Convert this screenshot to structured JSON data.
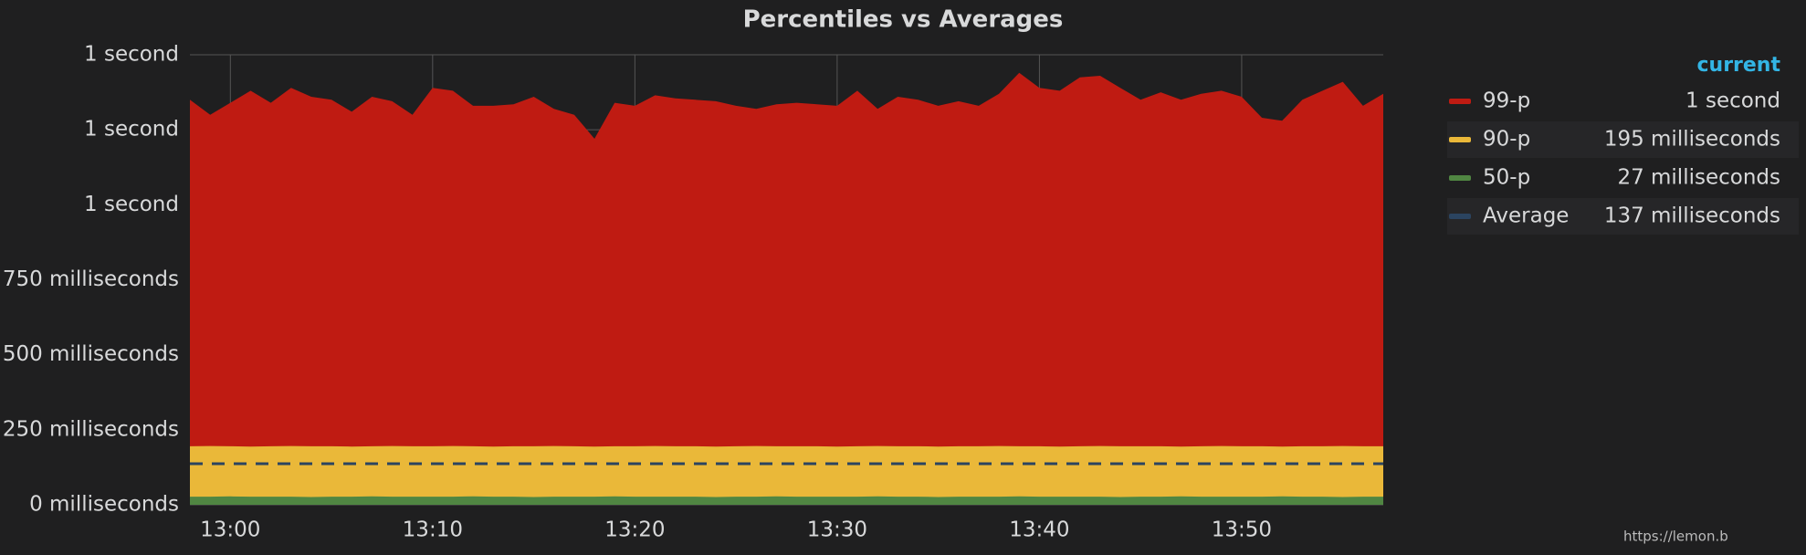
{
  "chart_data": {
    "type": "area",
    "title": "Percentiles vs Averages",
    "x": [
      "12:58",
      "12:59",
      "13:00",
      "13:01",
      "13:02",
      "13:03",
      "13:04",
      "13:05",
      "13:06",
      "13:07",
      "13:08",
      "13:09",
      "13:10",
      "13:11",
      "13:12",
      "13:13",
      "13:14",
      "13:15",
      "13:16",
      "13:17",
      "13:18",
      "13:19",
      "13:20",
      "13:21",
      "13:22",
      "13:23",
      "13:24",
      "13:25",
      "13:26",
      "13:27",
      "13:28",
      "13:29",
      "13:30",
      "13:31",
      "13:32",
      "13:33",
      "13:34",
      "13:35",
      "13:36",
      "13:37",
      "13:38",
      "13:39",
      "13:40",
      "13:41",
      "13:42",
      "13:43",
      "13:44",
      "13:45",
      "13:46",
      "13:47",
      "13:48",
      "13:49",
      "13:50",
      "13:51",
      "13:52",
      "13:53",
      "13:54",
      "13:55",
      "13:56",
      "13:57"
    ],
    "xlim": [
      "12:58",
      "13:57"
    ],
    "xticks": [
      "13:00",
      "13:10",
      "13:20",
      "13:30",
      "13:40",
      "13:50"
    ],
    "ylim": [
      0,
      1500
    ],
    "yticks": [
      {
        "value": 0,
        "label": "0 milliseconds"
      },
      {
        "value": 250,
        "label": "250 milliseconds"
      },
      {
        "value": 500,
        "label": "500 milliseconds"
      },
      {
        "value": 750,
        "label": "750 milliseconds"
      },
      {
        "value": 1000,
        "label": "1 second"
      },
      {
        "value": 1250,
        "label": "1 second"
      },
      {
        "value": 1500,
        "label": "1 second"
      }
    ],
    "grid": true,
    "legend_header": "current",
    "series": [
      {
        "name": "99-p",
        "color": "#bf1b12",
        "fill": true,
        "current": "1 second",
        "values": [
          1350,
          1300,
          1340,
          1380,
          1340,
          1390,
          1360,
          1350,
          1310,
          1360,
          1345,
          1300,
          1390,
          1380,
          1330,
          1330,
          1335,
          1360,
          1320,
          1300,
          1220,
          1340,
          1330,
          1365,
          1355,
          1350,
          1345,
          1330,
          1320,
          1335,
          1340,
          1335,
          1330,
          1380,
          1320,
          1360,
          1350,
          1330,
          1345,
          1330,
          1370,
          1440,
          1390,
          1380,
          1425,
          1430,
          1390,
          1350,
          1375,
          1350,
          1370,
          1380,
          1360,
          1290,
          1280,
          1350,
          1380,
          1410,
          1330,
          1370
        ]
      },
      {
        "name": "90-p",
        "color": "#eab839",
        "fill": true,
        "current": "195 milliseconds",
        "values": [
          195,
          196,
          195,
          194,
          195,
          196,
          195,
          195,
          194,
          195,
          196,
          195,
          195,
          196,
          195,
          194,
          195,
          195,
          196,
          195,
          194,
          195,
          195,
          196,
          195,
          195,
          194,
          195,
          196,
          195,
          195,
          195,
          194,
          195,
          196,
          195,
          195,
          194,
          195,
          195,
          196,
          195,
          195,
          194,
          195,
          196,
          195,
          195,
          195,
          194,
          195,
          196,
          195,
          195,
          194,
          195,
          195,
          196,
          195,
          195
        ]
      },
      {
        "name": "50-p",
        "color": "#508642",
        "fill": true,
        "current": "27 milliseconds",
        "values": [
          27,
          27,
          28,
          27,
          27,
          27,
          26,
          27,
          27,
          28,
          27,
          27,
          27,
          27,
          28,
          27,
          27,
          26,
          27,
          27,
          27,
          28,
          27,
          27,
          27,
          27,
          26,
          27,
          27,
          28,
          27,
          27,
          27,
          27,
          28,
          27,
          27,
          26,
          27,
          27,
          27,
          28,
          27,
          27,
          27,
          27,
          26,
          27,
          27,
          28,
          27,
          27,
          27,
          27,
          28,
          27,
          27,
          26,
          27,
          27
        ]
      },
      {
        "name": "Average",
        "color": "#2b4460",
        "fill": false,
        "dashed": true,
        "current": "137 milliseconds",
        "values": [
          137,
          137,
          137,
          137,
          137,
          137,
          137,
          137,
          137,
          137,
          137,
          137,
          137,
          137,
          137,
          137,
          137,
          137,
          137,
          137,
          137,
          137,
          137,
          137,
          137,
          137,
          137,
          137,
          137,
          137,
          137,
          137,
          137,
          137,
          137,
          137,
          137,
          137,
          137,
          137,
          137,
          137,
          137,
          137,
          137,
          137,
          137,
          137,
          137,
          137,
          137,
          137,
          137,
          137,
          137,
          137,
          137,
          137,
          137,
          137
        ]
      }
    ]
  },
  "watermark": "https://lemon.b"
}
